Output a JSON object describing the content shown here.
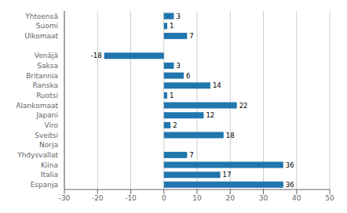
{
  "chart_data": {
    "type": "bar",
    "orientation": "horizontal",
    "categories": [
      "Espanja",
      "Italia",
      "Kiina",
      "Yhdysvallat",
      "Norja",
      "Sveitsi",
      "Viro",
      "Japani",
      "Alankomaat",
      "Ruotsi",
      "Ranska",
      "Britannia",
      "Saksa",
      "Venäjä",
      null,
      "Ulkomaat",
      "Suomi",
      "Yhteensä"
    ],
    "values": [
      36,
      17,
      36,
      7,
      0,
      18,
      2,
      12,
      22,
      1,
      14,
      6,
      3,
      -18,
      null,
      7,
      1,
      3
    ],
    "color": "#2176ae",
    "xlim": [
      -30,
      50
    ],
    "xticks": [
      -30,
      -20,
      -10,
      0,
      10,
      20,
      30,
      40,
      50
    ],
    "grid": true,
    "data_labels": true
  }
}
